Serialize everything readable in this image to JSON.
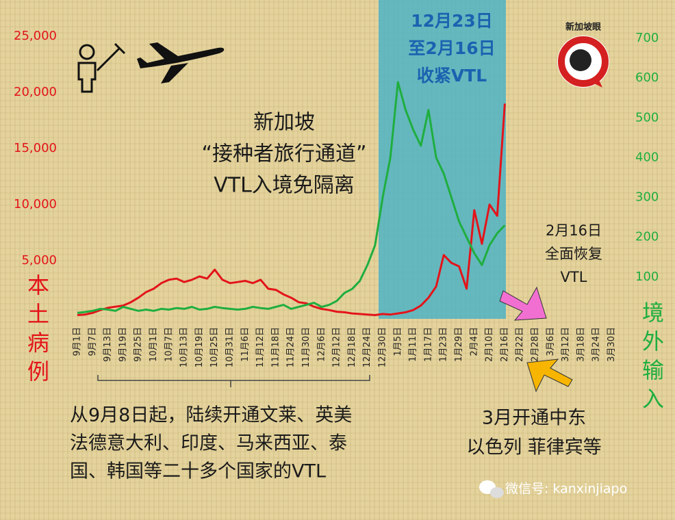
{
  "chart_data": {
    "type": "line",
    "categories": [
      "9月1日",
      null,
      "9月7日",
      null,
      "9月13日",
      null,
      "9月19日",
      null,
      "9月25日",
      null,
      "10月1日",
      null,
      "10月7日",
      null,
      "10月13日",
      null,
      "10月19日",
      null,
      "10月25日",
      null,
      "10月31日",
      null,
      "11月6日",
      null,
      "11月12日",
      null,
      "11月18日",
      null,
      "11月24日",
      null,
      "11月30日",
      null,
      "12月6日",
      null,
      "12月12日",
      null,
      "12月18日",
      null,
      "12月24日",
      null,
      "12月30日",
      null,
      "1月5日",
      null,
      "1月11日",
      null,
      "1月17日",
      null,
      "1月23日",
      null,
      "1月29日",
      null,
      "2月4日",
      null,
      "2月10日",
      null,
      "2月16日",
      null,
      "2月22日",
      null,
      "2月28日",
      null,
      "3月6日",
      null,
      "3月12日",
      null,
      "3月18日",
      null,
      "3月24日",
      null,
      "3月30日"
    ],
    "series": [
      {
        "color": "#e3141a",
        "values": [
          150,
          200,
          350,
          600,
          800,
          900,
          1000,
          1300,
          1700,
          2200,
          2500,
          3000,
          3300,
          3400,
          3100,
          3300,
          3600,
          3400,
          4200,
          3300,
          3000,
          3100,
          3200,
          3000,
          3300,
          2500,
          2400,
          2000,
          1700,
          1300,
          1200,
          900,
          700,
          600,
          450,
          400,
          300,
          250,
          200,
          150,
          250,
          200,
          300,
          400,
          600,
          1000,
          1700,
          2700,
          5500,
          4800,
          4500,
          2500,
          9500,
          6500,
          10000,
          9000,
          19000,
          null,
          null,
          null,
          null,
          null,
          null,
          null,
          null,
          null,
          null,
          null,
          null,
          null,
          null
        ]
      },
      {
        "color": "#1fae3f",
        "axis": "y2",
        "values": [
          10,
          12,
          15,
          20,
          18,
          15,
          25,
          20,
          15,
          18,
          15,
          20,
          18,
          22,
          20,
          25,
          18,
          20,
          25,
          22,
          20,
          18,
          20,
          25,
          22,
          20,
          25,
          30,
          20,
          25,
          30,
          35,
          25,
          30,
          40,
          60,
          70,
          90,
          130,
          180,
          300,
          400,
          590,
          520,
          470,
          430,
          520,
          400,
          360,
          300,
          240,
          200,
          160,
          130,
          180,
          210,
          230,
          null,
          null,
          null,
          null,
          null,
          null,
          null,
          null,
          null,
          null,
          null,
          null,
          null,
          null
        ]
      }
    ],
    "ylim": [
      0,
      25000
    ],
    "yticks": [
      {
        "value": 5000,
        "label": "5,000"
      },
      {
        "value": 10000,
        "label": "10,000"
      },
      {
        "value": 15000,
        "label": "15,000"
      },
      {
        "value": 20000,
        "label": "20,000"
      },
      {
        "value": 25000,
        "label": "25,000"
      }
    ],
    "y2lim": [
      0,
      700
    ],
    "y2ticks": [
      100,
      200,
      300,
      400,
      500,
      600,
      700
    ],
    "y_label": "本土病例",
    "y2_label": "境外输入",
    "annotations": [
      {
        "lines": [
          "新加坡",
          "“接种者旅行通道”",
          "VTL入境免隔离"
        ]
      },
      {
        "lines": [
          "12月23日",
          "至2月16日",
          "收紧VTL"
        ]
      },
      {
        "lines": [
          "2月16日",
          "全面恢复",
          "VTL"
        ]
      },
      {
        "lines": [
          "从9月8日起，陆续开通文莱、英美",
          "法德意大利、印度、马来西亚、泰",
          "国、韩国等二十多个国家的VTL"
        ]
      },
      {
        "lines": [
          "3月开通中东",
          "以色列 菲律宾等"
        ]
      }
    ],
    "logo": "新加坡眼",
    "watermark": "微信号: kanxinjiapo"
  }
}
